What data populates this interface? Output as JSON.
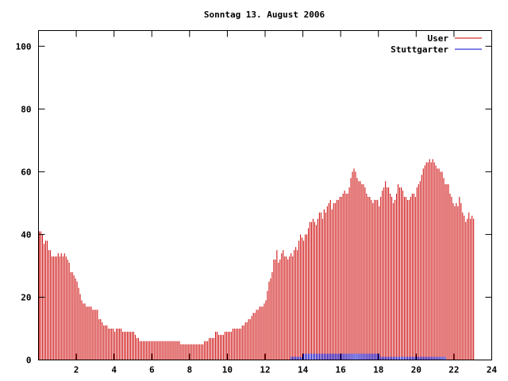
{
  "chart_data": {
    "type": "bar",
    "title": "Sonntag 13. August 2006",
    "xlabel": "",
    "ylabel": "",
    "xlim": [
      0,
      24
    ],
    "ylim": [
      0,
      105
    ],
    "x_ticks": [
      2,
      4,
      6,
      8,
      10,
      12,
      14,
      16,
      18,
      20,
      22,
      24
    ],
    "y_ticks": [
      0,
      20,
      40,
      60,
      80,
      100
    ],
    "x_tick_labels": [
      "2",
      "4",
      "6",
      "8",
      "10",
      "12",
      "14",
      "16",
      "18",
      "20",
      "22",
      "24"
    ],
    "y_tick_labels": [
      "0",
      "20",
      "40",
      "60",
      "80",
      "100"
    ],
    "grid": false,
    "legend_position": "top-right",
    "series": [
      {
        "name": "User",
        "color": "#cc0000",
        "style": "impulses",
        "interval_minutes": 5,
        "values": [
          41,
          41,
          40,
          37,
          38,
          38,
          35,
          35,
          33,
          33,
          33,
          33,
          34,
          33,
          34,
          33,
          34,
          33,
          32,
          31,
          28,
          28,
          27,
          26,
          25,
          23,
          21,
          19,
          18,
          18,
          17,
          17,
          17,
          17,
          16,
          16,
          16,
          16,
          13,
          13,
          12,
          11,
          11,
          11,
          10,
          10,
          10,
          10,
          9,
          10,
          10,
          10,
          10,
          9,
          9,
          9,
          9,
          9,
          9,
          9,
          9,
          8,
          7,
          7,
          6,
          6,
          6,
          6,
          6,
          6,
          6,
          6,
          6,
          6,
          6,
          6,
          6,
          6,
          6,
          6,
          6,
          6,
          6,
          6,
          6,
          6,
          6,
          6,
          6,
          6,
          5,
          5,
          5,
          5,
          5,
          5,
          5,
          5,
          5,
          5,
          5,
          5,
          5,
          5,
          5,
          6,
          6,
          6,
          7,
          7,
          7,
          7,
          9,
          9,
          8,
          8,
          8,
          8,
          9,
          9,
          9,
          9,
          9,
          10,
          10,
          10,
          10,
          10,
          10,
          11,
          11,
          12,
          12,
          13,
          13,
          14,
          15,
          15,
          16,
          16,
          17,
          17,
          17,
          18,
          19,
          22,
          25,
          26,
          28,
          32,
          32,
          35,
          31,
          32,
          34,
          35,
          33,
          33,
          32,
          33,
          34,
          33,
          35,
          36,
          35,
          38,
          40,
          39,
          38,
          40,
          40,
          42,
          44,
          44,
          45,
          44,
          43,
          45,
          47,
          47,
          45,
          48,
          47,
          49,
          50,
          51,
          48,
          50,
          50,
          51,
          51,
          52,
          52,
          53,
          54,
          53,
          53,
          55,
          58,
          60,
          61,
          60,
          58,
          57,
          57,
          56,
          56,
          55,
          53,
          52,
          52,
          51,
          50,
          51,
          51,
          51,
          49,
          52,
          54,
          55,
          57,
          55,
          55,
          53,
          52,
          50,
          51,
          53,
          56,
          55,
          55,
          54,
          52,
          52,
          51,
          51,
          52,
          53,
          53,
          52,
          55,
          56,
          57,
          59,
          61,
          62,
          63,
          63,
          64,
          63,
          64,
          63,
          62,
          61,
          61,
          60,
          60,
          58,
          56,
          56,
          56,
          53,
          52,
          50,
          49,
          50,
          49,
          52,
          50,
          47,
          46,
          44,
          45,
          47,
          45,
          46,
          45
        ]
      },
      {
        "name": "Stuttgarter",
        "color": "#0000cc",
        "style": "impulses",
        "interval_minutes": 5,
        "values": [
          0,
          0,
          0,
          0,
          0,
          0,
          0,
          0,
          0,
          0,
          0,
          0,
          0,
          0,
          0,
          0,
          0,
          0,
          0,
          0,
          0,
          0,
          0,
          0,
          0,
          0,
          0,
          0,
          0,
          0,
          0,
          0,
          0,
          0,
          0,
          0,
          0,
          0,
          0,
          0,
          0,
          0,
          0,
          0,
          0,
          0,
          0,
          0,
          0,
          0,
          0,
          0,
          0,
          0,
          0,
          0,
          0,
          0,
          0,
          0,
          0,
          0,
          0,
          0,
          0,
          0,
          0,
          0,
          0,
          0,
          0,
          0,
          0,
          0,
          0,
          0,
          0,
          0,
          0,
          0,
          0,
          0,
          0,
          0,
          0,
          0,
          0,
          0,
          0,
          0,
          0,
          0,
          0,
          0,
          0,
          0,
          0,
          0,
          0,
          0,
          0,
          0,
          0,
          0,
          0,
          0,
          0,
          0,
          0,
          0,
          0,
          0,
          0,
          0,
          0,
          0,
          0,
          0,
          0,
          0,
          0,
          0,
          0,
          0,
          0,
          0,
          0,
          0,
          0,
          0,
          0,
          0,
          0,
          0,
          0,
          0,
          0,
          0,
          0,
          0,
          0,
          0,
          0,
          0,
          0,
          0,
          0,
          0,
          0,
          0,
          0,
          0,
          0,
          0,
          0,
          0,
          0,
          0,
          0,
          0,
          1,
          1,
          1,
          1,
          1,
          1,
          1,
          1,
          2,
          2,
          2,
          2,
          2,
          2,
          2,
          2,
          2,
          2,
          2,
          2,
          2,
          2,
          2,
          2,
          2,
          2,
          2,
          2,
          2,
          2,
          2,
          2,
          2,
          2,
          2,
          2,
          2,
          2,
          2,
          2,
          2,
          2,
          2,
          2,
          2,
          2,
          2,
          2,
          2,
          2,
          2,
          2,
          2,
          2,
          2,
          2,
          2,
          1,
          1,
          1,
          1,
          1,
          1,
          1,
          1,
          1,
          1,
          1,
          1,
          1,
          1,
          1,
          1,
          1,
          1,
          1,
          1,
          1,
          1,
          1,
          1,
          1,
          1,
          1,
          1,
          1,
          1,
          1,
          1,
          1,
          1,
          1,
          1,
          1,
          1,
          1,
          1,
          1,
          1,
          0,
          0,
          0,
          0,
          0,
          0,
          0,
          0,
          0,
          0,
          0,
          0,
          0,
          0,
          0,
          0,
          0,
          0,
          0
        ]
      }
    ]
  }
}
